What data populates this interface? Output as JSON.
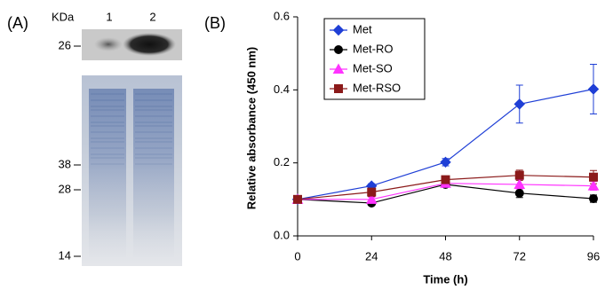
{
  "panel_a": {
    "label": "(A)",
    "unit_label": "KDa",
    "lanes": [
      "1",
      "2"
    ],
    "markers": [
      26,
      38,
      28,
      14
    ]
  },
  "chart_data": {
    "type": "line",
    "panel_label": "(B)",
    "x_label": "Time (h)",
    "y_label": "Relative absorbance (450 nm)",
    "x": [
      0,
      24,
      48,
      72,
      96
    ],
    "xlim": [
      0,
      96
    ],
    "xticks": [
      0,
      24,
      48,
      72,
      96
    ],
    "ylim": [
      0,
      0.6
    ],
    "yticks": [
      {
        "value": 0,
        "label": "0.0"
      },
      {
        "value": 0.2,
        "label": "0.2"
      },
      {
        "value": 0.4,
        "label": "0.4"
      },
      {
        "value": 0.6,
        "label": "0.6"
      }
    ],
    "legend": "top-left",
    "series": [
      {
        "name": "Met",
        "color": "#1f3fd6",
        "marker": "diamond",
        "values": [
          0.1,
          0.137,
          0.202,
          0.361,
          0.402
        ],
        "errors": [
          0,
          0.006,
          0.01,
          0.052,
          0.068
        ]
      },
      {
        "name": "Met-RO",
        "color": "#000000",
        "marker": "circle",
        "values": [
          0.1,
          0.09,
          0.141,
          0.117,
          0.102
        ],
        "errors": [
          0,
          0.006,
          0.006,
          0.012,
          0.01
        ]
      },
      {
        "name": "Met-SO",
        "color": "#ff33ff",
        "marker": "triangle",
        "values": [
          0.1,
          0.1,
          0.144,
          0.141,
          0.137
        ],
        "errors": [
          0,
          0.006,
          0.006,
          0.012,
          0.012
        ]
      },
      {
        "name": "Met-RSO",
        "color": "#8b1a1a",
        "marker": "square",
        "values": [
          0.1,
          0.12,
          0.154,
          0.166,
          0.161
        ],
        "errors": [
          0.008,
          0.012,
          0.01,
          0.014,
          0.018
        ]
      }
    ]
  }
}
